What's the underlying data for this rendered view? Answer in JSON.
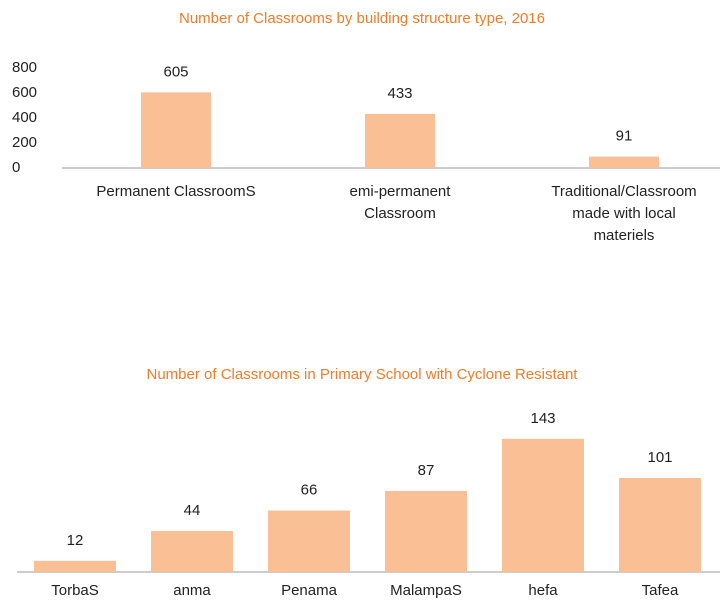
{
  "chart_data": [
    {
      "type": "bar",
      "title": "Number of Classrooms by building structure type, 2016",
      "categories": [
        "Permanent ClassroomS",
        "emi-permanent Classroom",
        "Traditional/Classroom made with local materiels"
      ],
      "values": [
        605,
        433,
        91
      ],
      "color": "#fbbf96",
      "ylim": [
        0,
        800
      ],
      "yticks": [
        0,
        200,
        400,
        600,
        800
      ]
    },
    {
      "type": "bar",
      "title": "Number of Classrooms in Primary School with Cyclone Resistant",
      "categories": [
        "TorbaS",
        "anma",
        "Penama",
        "MalampaS",
        "hefa",
        "Tafea"
      ],
      "values": [
        12,
        44,
        66,
        87,
        143,
        101
      ],
      "color": "#fbbf96",
      "ylim": [
        0,
        160
      ]
    }
  ]
}
